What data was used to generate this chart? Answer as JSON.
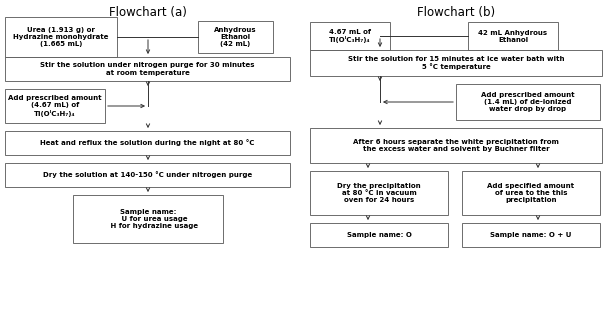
{
  "title_a": "Flowchart (a)",
  "title_b": "Flowchart (b)",
  "bg_color": "#ffffff",
  "box_facecolor": "#ffffff",
  "box_edge": "#555555",
  "font_size": 5.0,
  "title_font_size": 8.5,
  "flowchart_a": {
    "box1_left": "Urea (1.913 g) or\nHydrazine monohydrate\n(1.665 mL)",
    "box1_right": "Anhydrous\nEthanol\n(42 mL)",
    "box2": "Stir the solution under nitrogen purge for 30 minutes\nat room temperature",
    "box3_left": "Add prescribed amount\n(4.67 mL) of\nTi(OᴵC₃H₇)₄",
    "box4": "Heat and reflux the solution during the night at 80 °C",
    "box5": "Dry the solution at 140-150 °C under nitrogen purge",
    "box6": "Sample name:\n     U for urea usage\n     H for hydrazine usage"
  },
  "flowchart_b": {
    "box1_left": "4.67 mL of\nTi(OᴵC₃H₇)₄",
    "box1_right": "42 mL Anhydrous\nEthanol",
    "box2": "Stir the solution for 15 minutes at ice water bath with\n5 °C temperature",
    "box3_right": "Add prescribed amount\n(1.4 mL) of de-ionized\nwater drop by drop",
    "box4": "After 6 hours separate the white precipitation from\nthe excess water and solvent by Buchner filter",
    "box5_left": "Dry the precipitation\nat 80 °C in vacuum\noven for 24 hours",
    "box5_right": "Add specified amount\nof urea to the this\nprecipitation",
    "box6_left": "Sample name: O",
    "box6_right": "Sample name: O + U"
  }
}
